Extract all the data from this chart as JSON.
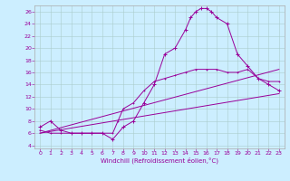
{
  "xlabel": "Windchill (Refroidissement éolien,°C)",
  "bg_color": "#cceeff",
  "line_color": "#990099",
  "xlim": [
    -0.5,
    23.5
  ],
  "ylim": [
    3.5,
    27
  ],
  "yticks": [
    4,
    6,
    8,
    10,
    12,
    14,
    16,
    18,
    20,
    22,
    24,
    26
  ],
  "xticks": [
    0,
    1,
    2,
    3,
    4,
    5,
    6,
    7,
    8,
    9,
    10,
    11,
    12,
    13,
    14,
    15,
    16,
    17,
    18,
    19,
    20,
    21,
    22,
    23
  ],
  "series1": [
    [
      0,
      7
    ],
    [
      1,
      8
    ],
    [
      2,
      6.5
    ],
    [
      3,
      6
    ],
    [
      4,
      6
    ],
    [
      5,
      6
    ],
    [
      6,
      6
    ],
    [
      7,
      5
    ],
    [
      8,
      7
    ],
    [
      9,
      8
    ],
    [
      10,
      11
    ],
    [
      11,
      14
    ],
    [
      12,
      19
    ],
    [
      13,
      20
    ],
    [
      14,
      23
    ],
    [
      14.5,
      25
    ],
    [
      15,
      26
    ],
    [
      15.5,
      26.5
    ],
    [
      16,
      26.5
    ],
    [
      16.5,
      26
    ],
    [
      17,
      25
    ],
    [
      18,
      24
    ],
    [
      19,
      19
    ],
    [
      20,
      17
    ],
    [
      21,
      15
    ],
    [
      22,
      14
    ],
    [
      23,
      13
    ]
  ],
  "series2": [
    [
      0,
      6.5
    ],
    [
      1,
      6
    ],
    [
      2,
      6
    ],
    [
      3,
      6
    ],
    [
      4,
      6
    ],
    [
      5,
      6
    ],
    [
      6,
      6
    ],
    [
      7,
      6
    ],
    [
      7.5,
      8
    ],
    [
      8,
      10
    ],
    [
      9,
      11
    ],
    [
      10,
      13
    ],
    [
      11,
      14.5
    ],
    [
      12,
      15
    ],
    [
      13,
      15.5
    ],
    [
      14,
      16
    ],
    [
      15,
      16.5
    ],
    [
      16,
      16.5
    ],
    [
      17,
      16.5
    ],
    [
      18,
      16
    ],
    [
      19,
      16
    ],
    [
      20,
      16.5
    ],
    [
      21,
      15
    ],
    [
      22,
      14.5
    ],
    [
      23,
      14.5
    ]
  ],
  "line3": [
    [
      0,
      6
    ],
    [
      23,
      16.5
    ]
  ],
  "line4": [
    [
      0,
      6
    ],
    [
      23,
      12.5
    ]
  ]
}
